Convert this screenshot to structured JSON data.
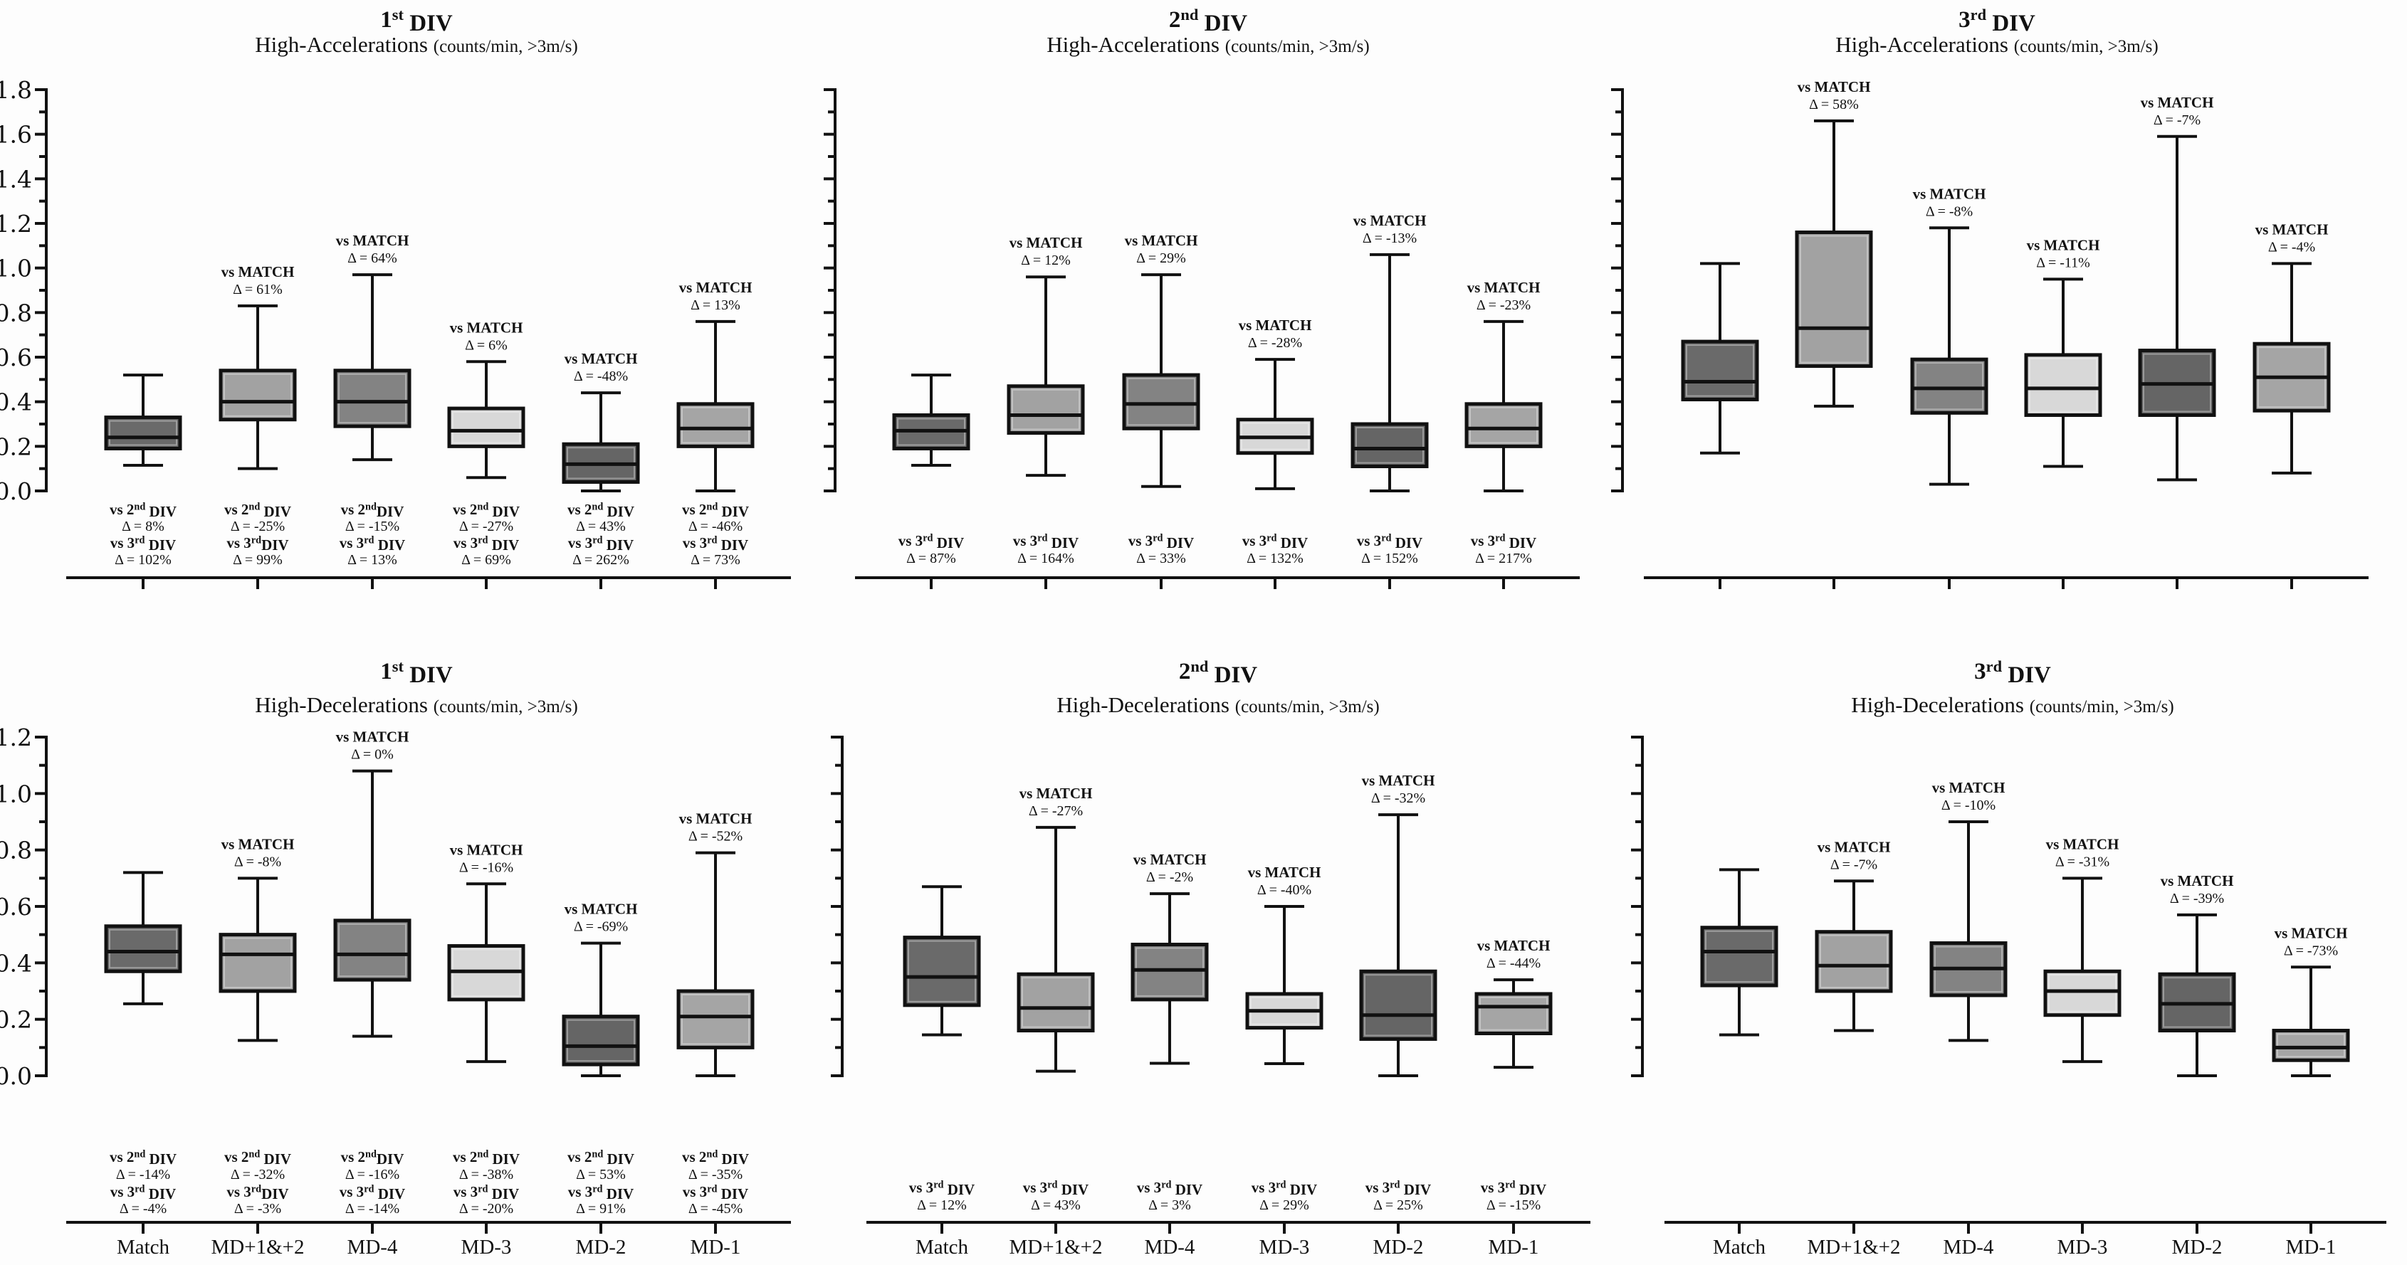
{
  "figure": {
    "rows": [
      {
        "metric_title": "High-Accelerations",
        "metric_unit": "(counts/min, >3m/s)"
      },
      {
        "metric_title": "High-Decelerations",
        "metric_unit": "(counts/min, >3m/s)"
      }
    ]
  },
  "chart_data": [
    {
      "type": "box",
      "title": "1st DIV",
      "subtitle": "High-Accelerations (counts/min, >3m/s)",
      "division": "1st DIV",
      "metric": "High-Accelerations",
      "unit": "(counts/min, >3m/s)",
      "ylim": [
        0,
        1.8
      ],
      "yticks": [
        "0.0",
        "0.2",
        "0.4",
        "0.6",
        "0.8",
        "1.0",
        "1.2",
        "1.4",
        "1.6",
        "1.8"
      ],
      "show_tick_labels": true,
      "categories": [
        "Match",
        "MD+1&+2",
        "MD-4",
        "MD-3",
        "MD-2",
        "MD-1"
      ],
      "show_category_labels": false,
      "boxes": [
        {
          "min": 0.115,
          "q1": 0.19,
          "median": 0.24,
          "q3": 0.33,
          "max": 0.52
        },
        {
          "min": 0.1,
          "q1": 0.32,
          "median": 0.4,
          "q3": 0.54,
          "max": 0.83
        },
        {
          "min": 0.14,
          "q1": 0.29,
          "median": 0.4,
          "q3": 0.54,
          "max": 0.97
        },
        {
          "min": 0.06,
          "q1": 0.2,
          "median": 0.27,
          "q3": 0.37,
          "max": 0.58
        },
        {
          "min": 0.0,
          "q1": 0.04,
          "median": 0.12,
          "q3": 0.21,
          "max": 0.44
        },
        {
          "min": 0.0,
          "q1": 0.2,
          "median": 0.28,
          "q3": 0.39,
          "max": 0.76
        }
      ],
      "vs_match": [
        null,
        "Δ = 61%",
        "Δ = 64%",
        "Δ = 6%",
        "Δ = -48%",
        "Δ = 13%"
      ],
      "vs_match_label": "vs MATCH",
      "below_annotations": [
        [
          "vs 2nd DIV",
          "Δ = 8%",
          "vs 3rd DIV",
          "Δ = 102%"
        ],
        [
          "vs 2nd DIV",
          "Δ = -25%",
          "vs 3rdDIV",
          "Δ = 99%"
        ],
        [
          "vs 2ndDIV",
          "Δ = -15%",
          "vs 3rd DIV",
          "Δ = 13%"
        ],
        [
          "vs 2nd DIV",
          "Δ = -27%",
          "vs 3rd DIV",
          "Δ = 69%"
        ],
        [
          "vs 2nd DIV",
          "Δ = 43%",
          "vs 3rd DIV",
          "Δ = 262%"
        ],
        [
          "vs 2nd DIV",
          "Δ = -46%",
          "vs 3rd DIV",
          "Δ = 73%"
        ]
      ]
    },
    {
      "type": "box",
      "title": "2nd DIV",
      "subtitle": "High-Accelerations (counts/min, >3m/s)",
      "division": "2nd DIV",
      "metric": "High-Accelerations",
      "unit": "(counts/min, >3m/s)",
      "ylim": [
        0,
        1.8
      ],
      "yticks": [
        "0.0",
        "0.2",
        "0.4",
        "0.6",
        "0.8",
        "1.0",
        "1.2",
        "1.4",
        "1.6",
        "1.8"
      ],
      "show_tick_labels": false,
      "categories": [
        "Match",
        "MD+1&+2",
        "MD-4",
        "MD-3",
        "MD-2",
        "MD-1"
      ],
      "show_category_labels": false,
      "boxes": [
        {
          "min": 0.115,
          "q1": 0.19,
          "median": 0.27,
          "q3": 0.34,
          "max": 0.52
        },
        {
          "min": 0.07,
          "q1": 0.26,
          "median": 0.34,
          "q3": 0.47,
          "max": 0.96
        },
        {
          "min": 0.02,
          "q1": 0.28,
          "median": 0.39,
          "q3": 0.52,
          "max": 0.97
        },
        {
          "min": 0.01,
          "q1": 0.17,
          "median": 0.24,
          "q3": 0.32,
          "max": 0.59
        },
        {
          "min": 0.0,
          "q1": 0.11,
          "median": 0.19,
          "q3": 0.3,
          "max": 1.06
        },
        {
          "min": 0.0,
          "q1": 0.2,
          "median": 0.28,
          "q3": 0.39,
          "max": 0.76
        }
      ],
      "vs_match": [
        null,
        "Δ = 12%",
        "Δ = 29%",
        "Δ = -28%",
        "Δ = -13%",
        "Δ = -23%"
      ],
      "vs_match_label": "vs MATCH",
      "below_annotations": [
        [
          "vs 3rd DIV",
          "Δ = 87%"
        ],
        [
          "vs 3rd DIV",
          "Δ = 164%"
        ],
        [
          "vs 3rd DIV",
          "Δ = 33%"
        ],
        [
          "vs 3rd DIV",
          "Δ = 132%"
        ],
        [
          "vs 3rd DIV",
          "Δ = 152%"
        ],
        [
          "vs 3rd DIV",
          "Δ = 217%"
        ]
      ]
    },
    {
      "type": "box",
      "title": "3rd DIV",
      "subtitle": "High-Accelerations (counts/min, >3m/s)",
      "division": "3rd DIV",
      "metric": "High-Accelerations",
      "unit": "(counts/min, >3m/s)",
      "ylim": [
        0,
        1.8
      ],
      "yticks": [
        "0.0",
        "0.2",
        "0.4",
        "0.6",
        "0.8",
        "1.0",
        "1.2",
        "1.4",
        "1.6",
        "1.8"
      ],
      "show_tick_labels": false,
      "categories": [
        "Match",
        "MD+1&+2",
        "MD-4",
        "MD-3",
        "MD-2",
        "MD-1"
      ],
      "show_category_labels": false,
      "boxes": [
        {
          "min": 0.17,
          "q1": 0.41,
          "median": 0.49,
          "q3": 0.67,
          "max": 1.02
        },
        {
          "min": 0.38,
          "q1": 0.56,
          "median": 0.73,
          "q3": 1.16,
          "max": 1.66
        },
        {
          "min": 0.03,
          "q1": 0.35,
          "median": 0.46,
          "q3": 0.59,
          "max": 1.18
        },
        {
          "min": 0.11,
          "q1": 0.34,
          "median": 0.46,
          "q3": 0.61,
          "max": 0.95
        },
        {
          "min": 0.05,
          "q1": 0.34,
          "median": 0.48,
          "q3": 0.63,
          "max": 1.59
        },
        {
          "min": 0.08,
          "q1": 0.36,
          "median": 0.51,
          "q3": 0.66,
          "max": 1.02
        }
      ],
      "vs_match": [
        null,
        "Δ = 58%",
        "Δ = -8%",
        "Δ = -11%",
        "Δ = -7%",
        "Δ = -4%"
      ],
      "vs_match_label": "vs MATCH",
      "below_annotations": []
    },
    {
      "type": "box",
      "title": "1st DIV",
      "subtitle": "High-Decelerations (counts/min, >3m/s)",
      "division": "1st DIV",
      "metric": "High-Decelerations",
      "unit": "(counts/min, >3m/s)",
      "ylim": [
        0,
        1.2
      ],
      "yticks": [
        "0.0",
        "0.2",
        "0.4",
        "0.6",
        "0.8",
        "1.0",
        "1.2"
      ],
      "show_tick_labels": true,
      "categories": [
        "Match",
        "MD+1&+2",
        "MD-4",
        "MD-3",
        "MD-2",
        "MD-1"
      ],
      "show_category_labels": true,
      "boxes": [
        {
          "min": 0.255,
          "q1": 0.37,
          "median": 0.44,
          "q3": 0.53,
          "max": 0.72
        },
        {
          "min": 0.125,
          "q1": 0.3,
          "median": 0.43,
          "q3": 0.5,
          "max": 0.7
        },
        {
          "min": 0.14,
          "q1": 0.34,
          "median": 0.43,
          "q3": 0.55,
          "max": 1.08
        },
        {
          "min": 0.05,
          "q1": 0.27,
          "median": 0.37,
          "q3": 0.46,
          "max": 0.68
        },
        {
          "min": 0.0,
          "q1": 0.04,
          "median": 0.105,
          "q3": 0.21,
          "max": 0.47
        },
        {
          "min": 0.0,
          "q1": 0.1,
          "median": 0.21,
          "q3": 0.3,
          "max": 0.79
        }
      ],
      "vs_match": [
        null,
        "Δ = -8%",
        "Δ = 0%",
        "Δ = -16%",
        "Δ = -69%",
        "Δ = -52%"
      ],
      "vs_match_label": "vs MATCH",
      "below_annotations": [
        [
          "vs 2nd DIV",
          "Δ = -14%",
          "vs 3rd DIV",
          "Δ = -4%"
        ],
        [
          "vs 2nd DIV",
          "Δ = -32%",
          "vs 3rdDIV",
          "Δ = -3%"
        ],
        [
          "vs 2ndDIV",
          "Δ = -16%",
          "vs 3rd DIV",
          "Δ = -14%"
        ],
        [
          "vs 2nd DIV",
          "Δ = -38%",
          "vs 3rd DIV",
          "Δ = -20%"
        ],
        [
          "vs 2nd DIV",
          "Δ = 53%",
          "vs 3rd DIV",
          "Δ = 91%"
        ],
        [
          "vs 2nd DIV",
          "Δ = -35%",
          "vs 3rd DIV",
          "Δ = -45%"
        ]
      ]
    },
    {
      "type": "box",
      "title": "2nd DIV",
      "subtitle": "High-Decelerations (counts/min, >3m/s)",
      "division": "2nd DIV",
      "metric": "High-Decelerations",
      "unit": "(counts/min, >3m/s)",
      "ylim": [
        0,
        1.2
      ],
      "yticks": [
        "0.0",
        "0.2",
        "0.4",
        "0.6",
        "0.8",
        "1.0",
        "1.2"
      ],
      "show_tick_labels": false,
      "categories": [
        "Match",
        "MD+1&+2",
        "MD-4",
        "MD-3",
        "MD-2",
        "MD-1"
      ],
      "show_category_labels": true,
      "boxes": [
        {
          "min": 0.145,
          "q1": 0.25,
          "median": 0.35,
          "q3": 0.49,
          "max": 0.67
        },
        {
          "min": 0.016,
          "q1": 0.16,
          "median": 0.24,
          "q3": 0.36,
          "max": 0.88
        },
        {
          "min": 0.044,
          "q1": 0.27,
          "median": 0.375,
          "q3": 0.465,
          "max": 0.645
        },
        {
          "min": 0.043,
          "q1": 0.17,
          "median": 0.23,
          "q3": 0.29,
          "max": 0.6
        },
        {
          "min": 0.0,
          "q1": 0.13,
          "median": 0.215,
          "q3": 0.37,
          "max": 0.925
        },
        {
          "min": 0.03,
          "q1": 0.15,
          "median": 0.245,
          "q3": 0.29,
          "max": 0.34
        }
      ],
      "vs_match": [
        null,
        "Δ = -27%",
        "Δ = -2%",
        "Δ = -40%",
        "Δ = -32%",
        "Δ = -44%"
      ],
      "vs_match_label": "vs MATCH",
      "below_annotations": [
        [
          "vs 3rd DIV",
          "Δ = 12%"
        ],
        [
          "vs 3rd DIV",
          "Δ = 43%"
        ],
        [
          "vs 3rd DIV",
          "Δ = 3%"
        ],
        [
          "vs 3rd DIV",
          "Δ = 29%"
        ],
        [
          "vs 3rd DIV",
          "Δ = 25%"
        ],
        [
          "vs 3rd DIV",
          "Δ = -15%"
        ]
      ]
    },
    {
      "type": "box",
      "title": "3rd DIV",
      "subtitle": "High-Decelerations (counts/min, >3m/s)",
      "division": "3rd DIV",
      "metric": "High-Decelerations",
      "unit": "(counts/min, >3m/s)",
      "ylim": [
        0,
        1.2
      ],
      "yticks": [
        "0.0",
        "0.2",
        "0.4",
        "0.6",
        "0.8",
        "1.0",
        "1.2"
      ],
      "show_tick_labels": false,
      "categories": [
        "Match",
        "MD+1&+2",
        "MD-4",
        "MD-3",
        "MD-2",
        "MD-1"
      ],
      "show_category_labels": true,
      "boxes": [
        {
          "min": 0.145,
          "q1": 0.32,
          "median": 0.44,
          "q3": 0.525,
          "max": 0.73
        },
        {
          "min": 0.16,
          "q1": 0.3,
          "median": 0.39,
          "q3": 0.51,
          "max": 0.69
        },
        {
          "min": 0.125,
          "q1": 0.285,
          "median": 0.38,
          "q3": 0.47,
          "max": 0.9
        },
        {
          "min": 0.05,
          "q1": 0.215,
          "median": 0.3,
          "q3": 0.37,
          "max": 0.7
        },
        {
          "min": 0.0,
          "q1": 0.16,
          "median": 0.255,
          "q3": 0.36,
          "max": 0.57
        },
        {
          "min": 0.0,
          "q1": 0.055,
          "median": 0.1,
          "q3": 0.16,
          "max": 0.385
        }
      ],
      "vs_match": [
        null,
        "Δ = -7%",
        "Δ = -10%",
        "Δ = -31%",
        "Δ = -39%",
        "Δ = -73%"
      ],
      "vs_match_label": "vs MATCH",
      "below_annotations": []
    }
  ],
  "colors": {
    "category_fills": {
      "Match": "#6a6a6a",
      "MD+1&+2": "#a2a2a2",
      "MD-4": "#838383",
      "MD-3": "#d8d8d8",
      "MD-2": "#656565",
      "MD-1": "#a5a5a5"
    },
    "ink": "#111111",
    "background": "#fdfdfd"
  }
}
